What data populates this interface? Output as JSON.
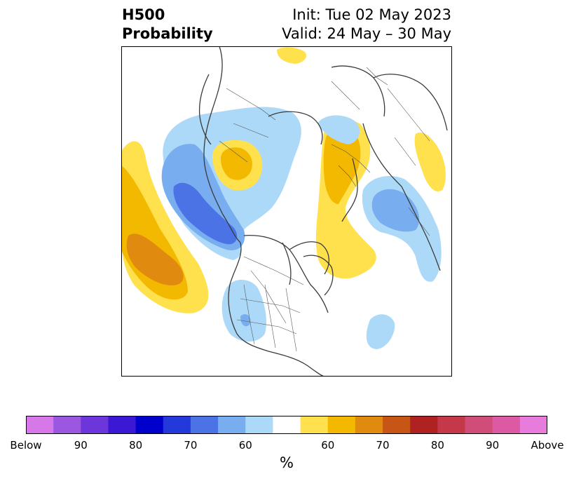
{
  "title": {
    "left_line1": "H500",
    "left_line2": "Probability",
    "right_line1": "Init: Tue 02 May 2023",
    "right_line2": "Valid: 24 May – 30 May"
  },
  "colorbar": {
    "colors": [
      "#d678e8",
      "#9b57e0",
      "#6d36db",
      "#3a18d4",
      "#0000cc",
      "#2339d9",
      "#4b73e6",
      "#78aef0",
      "#add9f8",
      "#ffffff",
      "#ffe14d",
      "#f3b800",
      "#e08a10",
      "#c75515",
      "#b02222",
      "#c4384a",
      "#d04d7a",
      "#db5aa3",
      "#e87cdc"
    ],
    "tick_labels": [
      "Below",
      "90",
      "80",
      "70",
      "60",
      "60",
      "70",
      "80",
      "90",
      "Above"
    ],
    "unit_label": "%"
  },
  "legend_colors": {
    "below_light": "#add9f8",
    "below_mid": "#78aef0",
    "below_dark": "#4b73e6",
    "above_light": "#ffe14d",
    "above_mid": "#f3b800",
    "above_dark": "#e08a10"
  }
}
